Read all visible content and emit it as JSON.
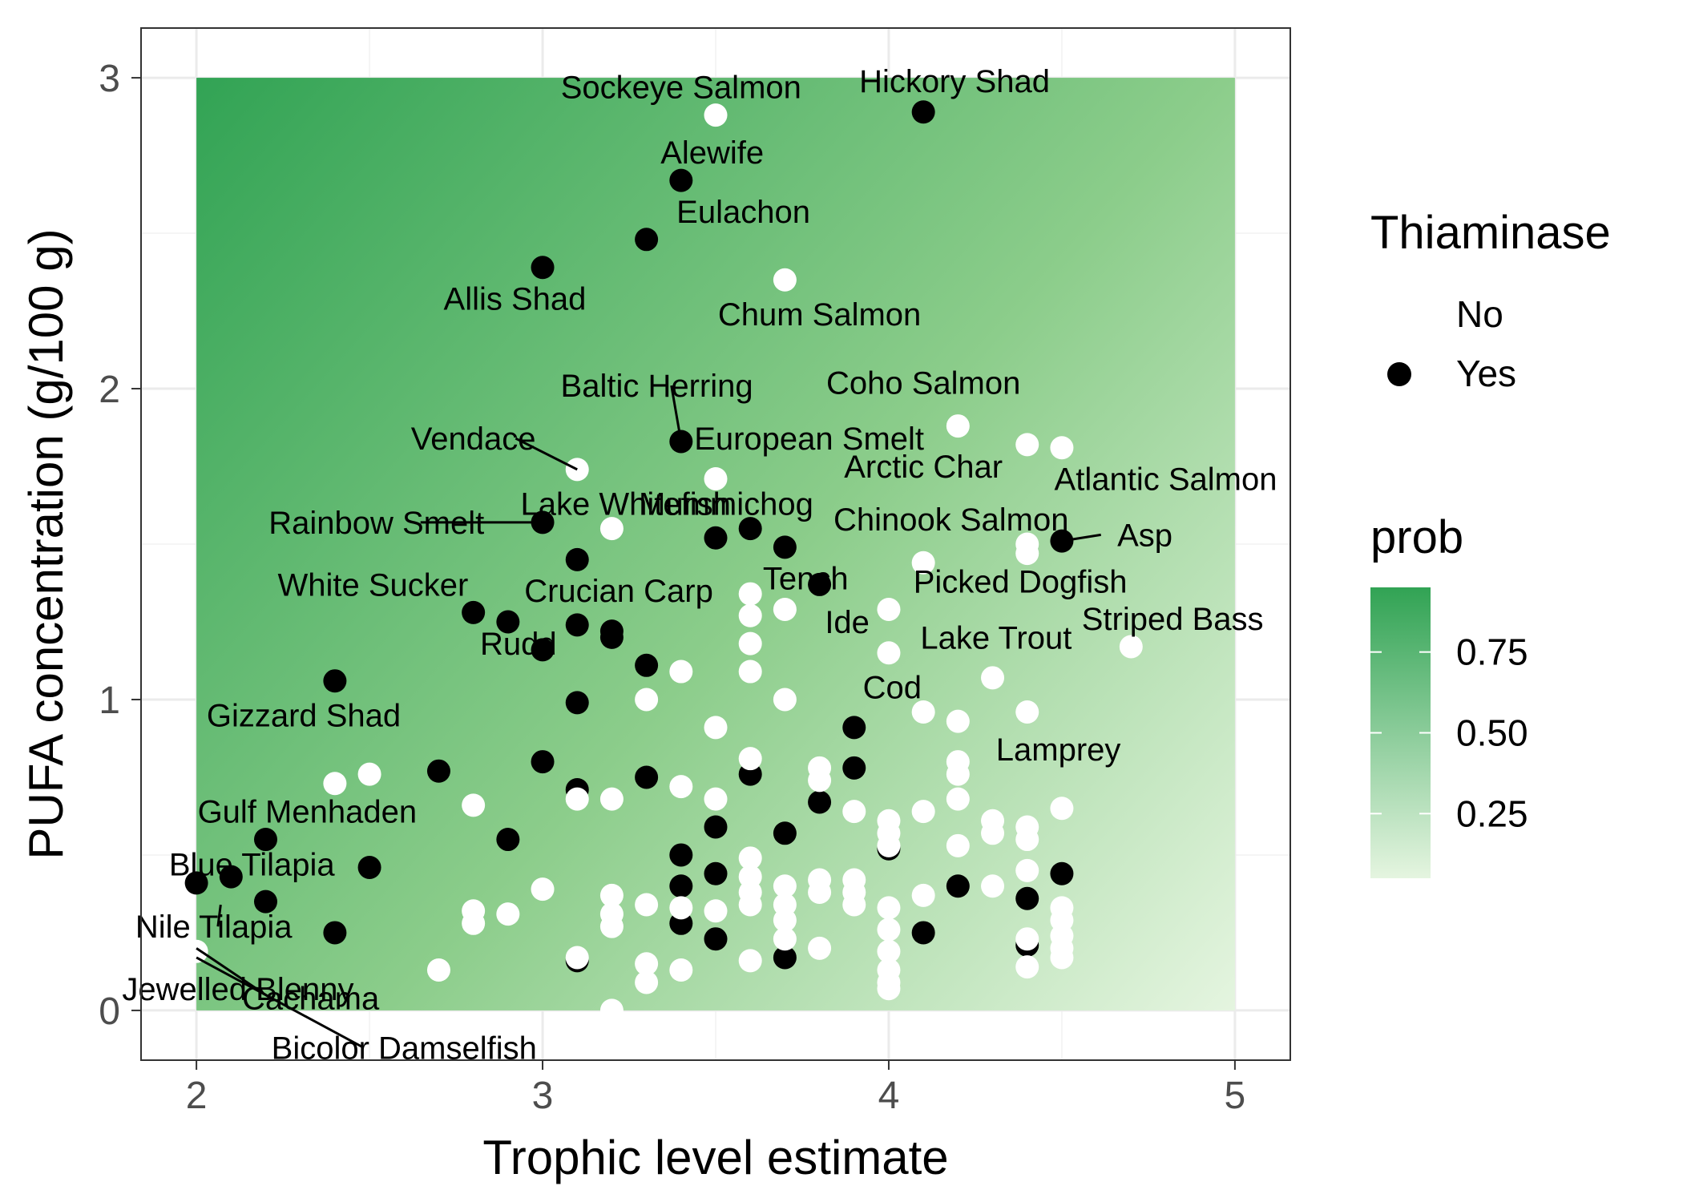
{
  "chart_data": {
    "type": "scatter",
    "xlabel": "Trophic level estimate",
    "ylabel": "PUFA concentration (g/100 g)",
    "xlim": [
      1.84,
      5.16
    ],
    "ylim": [
      -0.16,
      3.16
    ],
    "x_ticks": [
      2,
      3,
      4,
      5
    ],
    "y_ticks": [
      0,
      1,
      2,
      3
    ],
    "grid": true,
    "legend_position": "right",
    "background_gradient": {
      "name": "prob",
      "breaks": [
        0.75,
        0.5,
        0.25
      ],
      "range": [
        0.05,
        0.95
      ],
      "low_color": "#e5f5e0",
      "high_color": "#31a354",
      "x_range": [
        2,
        5
      ],
      "y_range": [
        0,
        3
      ]
    },
    "legend": {
      "title": "Thiaminase",
      "entries": [
        {
          "label": "No",
          "color": "#ffffff"
        },
        {
          "label": "Yes",
          "color": "#000000"
        }
      ]
    },
    "series": [
      {
        "name": "Yes",
        "color": "#000000",
        "points": [
          [
            4.1,
            2.89
          ],
          [
            3.4,
            2.67
          ],
          [
            3.3,
            2.48
          ],
          [
            3.0,
            2.39
          ],
          [
            3.4,
            1.83
          ],
          [
            3.0,
            1.57
          ],
          [
            3.5,
            1.52
          ],
          [
            3.6,
            1.55
          ],
          [
            3.7,
            1.49
          ],
          [
            4.5,
            1.51
          ],
          [
            3.1,
            1.45
          ],
          [
            3.8,
            1.37
          ],
          [
            2.8,
            1.28
          ],
          [
            2.9,
            1.25
          ],
          [
            3.1,
            1.24
          ],
          [
            3.2,
            1.22
          ],
          [
            3.2,
            1.2
          ],
          [
            3.0,
            1.16
          ],
          [
            3.3,
            1.11
          ],
          [
            2.4,
            1.06
          ],
          [
            3.1,
            0.99
          ],
          [
            3.9,
            0.91
          ],
          [
            3.0,
            0.8
          ],
          [
            3.9,
            0.78
          ],
          [
            2.7,
            0.77
          ],
          [
            3.6,
            0.76
          ],
          [
            3.3,
            0.75
          ],
          [
            3.1,
            0.71
          ],
          [
            3.8,
            0.67
          ],
          [
            3.5,
            0.59
          ],
          [
            3.7,
            0.57
          ],
          [
            2.2,
            0.55
          ],
          [
            2.9,
            0.55
          ],
          [
            3.4,
            0.5
          ],
          [
            2.5,
            0.46
          ],
          [
            3.5,
            0.44
          ],
          [
            4.5,
            0.44
          ],
          [
            2.1,
            0.43
          ],
          [
            2.0,
            0.41
          ],
          [
            3.4,
            0.4
          ],
          [
            4.2,
            0.4
          ],
          [
            4.4,
            0.36
          ],
          [
            2.2,
            0.35
          ],
          [
            3.4,
            0.28
          ],
          [
            2.4,
            0.25
          ],
          [
            4.1,
            0.25
          ],
          [
            3.5,
            0.23
          ],
          [
            4.4,
            0.21
          ],
          [
            3.7,
            0.17
          ],
          [
            3.1,
            0.16
          ],
          [
            4.0,
            0.52
          ]
        ]
      },
      {
        "name": "No",
        "color": "#ffffff",
        "points": [
          [
            3.5,
            2.88
          ],
          [
            3.7,
            2.35
          ],
          [
            4.2,
            1.88
          ],
          [
            4.4,
            1.82
          ],
          [
            4.5,
            1.81
          ],
          [
            3.1,
            1.74
          ],
          [
            3.5,
            1.71
          ],
          [
            3.2,
            1.55
          ],
          [
            4.4,
            1.5
          ],
          [
            4.4,
            1.47
          ],
          [
            4.1,
            1.44
          ],
          [
            3.6,
            1.34
          ],
          [
            3.7,
            1.29
          ],
          [
            4.0,
            1.29
          ],
          [
            3.6,
            1.27
          ],
          [
            3.6,
            1.18
          ],
          [
            4.7,
            1.17
          ],
          [
            4.0,
            1.15
          ],
          [
            3.4,
            1.09
          ],
          [
            3.6,
            1.09
          ],
          [
            4.3,
            1.07
          ],
          [
            3.3,
            1.0
          ],
          [
            3.7,
            1.0
          ],
          [
            4.1,
            0.96
          ],
          [
            4.4,
            0.96
          ],
          [
            4.2,
            0.93
          ],
          [
            3.5,
            0.91
          ],
          [
            3.6,
            0.81
          ],
          [
            4.2,
            0.8
          ],
          [
            3.8,
            0.78
          ],
          [
            4.2,
            0.76
          ],
          [
            2.5,
            0.76
          ],
          [
            2.4,
            0.73
          ],
          [
            3.8,
            0.74
          ],
          [
            3.4,
            0.72
          ],
          [
            3.1,
            0.68
          ],
          [
            3.2,
            0.68
          ],
          [
            3.5,
            0.68
          ],
          [
            4.2,
            0.68
          ],
          [
            2.8,
            0.66
          ],
          [
            3.9,
            0.64
          ],
          [
            4.1,
            0.64
          ],
          [
            4.5,
            0.65
          ],
          [
            4.0,
            0.61
          ],
          [
            4.3,
            0.61
          ],
          [
            4.4,
            0.59
          ],
          [
            4.0,
            0.57
          ],
          [
            4.3,
            0.57
          ],
          [
            4.4,
            0.55
          ],
          [
            4.2,
            0.53
          ],
          [
            4.0,
            0.53
          ],
          [
            3.6,
            0.49
          ],
          [
            4.4,
            0.45
          ],
          [
            3.6,
            0.43
          ],
          [
            3.8,
            0.42
          ],
          [
            3.9,
            0.42
          ],
          [
            4.3,
            0.4
          ],
          [
            3.7,
            0.4
          ],
          [
            3.0,
            0.39
          ],
          [
            3.6,
            0.38
          ],
          [
            3.8,
            0.38
          ],
          [
            3.9,
            0.38
          ],
          [
            4.1,
            0.37
          ],
          [
            3.2,
            0.37
          ],
          [
            3.3,
            0.34
          ],
          [
            3.7,
            0.34
          ],
          [
            3.9,
            0.34
          ],
          [
            3.6,
            0.34
          ],
          [
            3.4,
            0.33
          ],
          [
            4.0,
            0.33
          ],
          [
            4.5,
            0.33
          ],
          [
            3.5,
            0.32
          ],
          [
            2.8,
            0.32
          ],
          [
            2.9,
            0.31
          ],
          [
            3.2,
            0.31
          ],
          [
            4.5,
            0.29
          ],
          [
            3.7,
            0.29
          ],
          [
            2.8,
            0.28
          ],
          [
            3.2,
            0.27
          ],
          [
            4.0,
            0.26
          ],
          [
            4.5,
            0.24
          ],
          [
            3.7,
            0.23
          ],
          [
            4.4,
            0.23
          ],
          [
            4.5,
            0.2
          ],
          [
            3.8,
            0.2
          ],
          [
            4.0,
            0.19
          ],
          [
            2.0,
            0.19
          ],
          [
            3.1,
            0.17
          ],
          [
            3.6,
            0.16
          ],
          [
            4.5,
            0.17
          ],
          [
            3.3,
            0.15
          ],
          [
            4.0,
            0.13
          ],
          [
            4.4,
            0.14
          ],
          [
            2.7,
            0.13
          ],
          [
            3.4,
            0.13
          ],
          [
            3.3,
            0.09
          ],
          [
            4.0,
            0.09
          ],
          [
            4.0,
            0.07
          ],
          [
            3.2,
            0.0
          ]
        ]
      }
    ],
    "annotations": [
      {
        "text": "Sockeye Salmon",
        "x": 3.4,
        "y": 2.97
      },
      {
        "text": "Hickory Shad",
        "x": 4.19,
        "y": 2.99
      },
      {
        "text": "Alewife",
        "x": 3.49,
        "y": 2.76
      },
      {
        "text": "Eulachon",
        "x": 3.58,
        "y": 2.57
      },
      {
        "text": "Allis Shad",
        "x": 2.92,
        "y": 2.29
      },
      {
        "text": "Chum Salmon",
        "x": 3.8,
        "y": 2.24
      },
      {
        "text": "Baltic Herring",
        "x": 3.33,
        "y": 2.01,
        "line_to": [
          3.4,
          1.83
        ]
      },
      {
        "text": "Coho Salmon",
        "x": 4.1,
        "y": 2.02
      },
      {
        "text": "Vendace",
        "x": 2.8,
        "y": 1.84,
        "line_to": [
          3.1,
          1.74
        ]
      },
      {
        "text": "European Smelt",
        "x": 3.77,
        "y": 1.84
      },
      {
        "text": "Arctic Char",
        "x": 4.1,
        "y": 1.75
      },
      {
        "text": "Atlantic Salmon",
        "x": 4.8,
        "y": 1.71
      },
      {
        "text": "Lake Whitefish",
        "x": 3.24,
        "y": 1.63
      },
      {
        "text": "Mummichog",
        "x": 3.53,
        "y": 1.63
      },
      {
        "text": "Rainbow Smelt",
        "x": 2.52,
        "y": 1.57,
        "line_to": [
          3.0,
          1.57
        ]
      },
      {
        "text": "Chinook Salmon",
        "x": 4.18,
        "y": 1.58
      },
      {
        "text": "Asp",
        "x": 4.74,
        "y": 1.53,
        "line_to": [
          4.5,
          1.51
        ]
      },
      {
        "text": "Tench",
        "x": 3.76,
        "y": 1.39
      },
      {
        "text": "White Sucker",
        "x": 2.51,
        "y": 1.37
      },
      {
        "text": "Picked Dogfish",
        "x": 4.38,
        "y": 1.38
      },
      {
        "text": "Crucian Carp",
        "x": 3.22,
        "y": 1.35
      },
      {
        "text": "Ide",
        "x": 3.88,
        "y": 1.25
      },
      {
        "text": "Striped Bass",
        "x": 4.82,
        "y": 1.26
      },
      {
        "text": "Rudd",
        "x": 2.93,
        "y": 1.18
      },
      {
        "text": "Lake Trout",
        "x": 4.31,
        "y": 1.2
      },
      {
        "text": "Cod",
        "x": 4.01,
        "y": 1.04
      },
      {
        "text": "Gizzard Shad",
        "x": 2.31,
        "y": 0.95
      },
      {
        "text": "Lamprey",
        "x": 4.49,
        "y": 0.84
      },
      {
        "text": "Gulf Menhaden",
        "x": 2.32,
        "y": 0.64
      },
      {
        "text": "Blue Tilapia",
        "x": 2.16,
        "y": 0.47
      },
      {
        "text": "Nile Tilapia",
        "x": 2.05,
        "y": 0.27,
        "line_to": [
          2.07,
          0.34
        ]
      },
      {
        "text": "Jewelled Blenny",
        "x": 2.12,
        "y": 0.07
      },
      {
        "text": "Cachama",
        "x": 2.33,
        "y": 0.04,
        "line_to": [
          2.0,
          0.2
        ]
      },
      {
        "text": "Bicolor Damselfish",
        "x": 2.6,
        "y": -0.12,
        "line_to": [
          2.0,
          0.17
        ]
      }
    ]
  }
}
